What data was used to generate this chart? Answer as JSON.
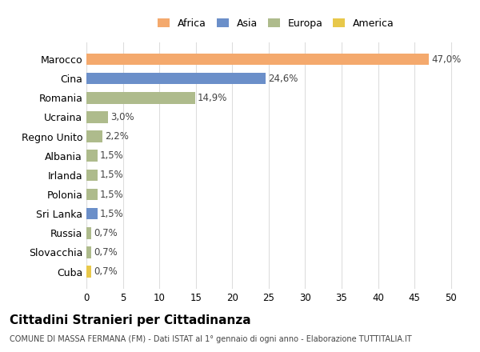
{
  "countries": [
    "Marocco",
    "Cina",
    "Romania",
    "Ucraina",
    "Regno Unito",
    "Albania",
    "Irlanda",
    "Polonia",
    "Sri Lanka",
    "Russia",
    "Slovacchia",
    "Cuba"
  ],
  "values": [
    47.0,
    24.6,
    14.9,
    3.0,
    2.2,
    1.5,
    1.5,
    1.5,
    1.5,
    0.7,
    0.7,
    0.7
  ],
  "labels": [
    "47,0%",
    "24,6%",
    "14,9%",
    "3,0%",
    "2,2%",
    "1,5%",
    "1,5%",
    "1,5%",
    "1,5%",
    "0,7%",
    "0,7%",
    "0,7%"
  ],
  "colors": [
    "#F4A96D",
    "#6B8FC9",
    "#AEBB8C",
    "#AEBB8C",
    "#AEBB8C",
    "#AEBB8C",
    "#AEBB8C",
    "#AEBB8C",
    "#6B8FC9",
    "#AEBB8C",
    "#AEBB8C",
    "#E8C84A"
  ],
  "legend_labels": [
    "Africa",
    "Asia",
    "Europa",
    "America"
  ],
  "legend_colors": [
    "#F4A96D",
    "#6B8FC9",
    "#AEBB8C",
    "#E8C84A"
  ],
  "title": "Cittadini Stranieri per Cittadinanza",
  "subtitle": "COMUNE DI MASSA FERMANA (FM) - Dati ISTAT al 1° gennaio di ogni anno - Elaborazione TUTTITALIA.IT",
  "xlim": [
    0,
    52
  ],
  "xticks": [
    0,
    5,
    10,
    15,
    20,
    25,
    30,
    35,
    40,
    45,
    50
  ],
  "background_color": "#ffffff",
  "grid_color": "#dddddd"
}
